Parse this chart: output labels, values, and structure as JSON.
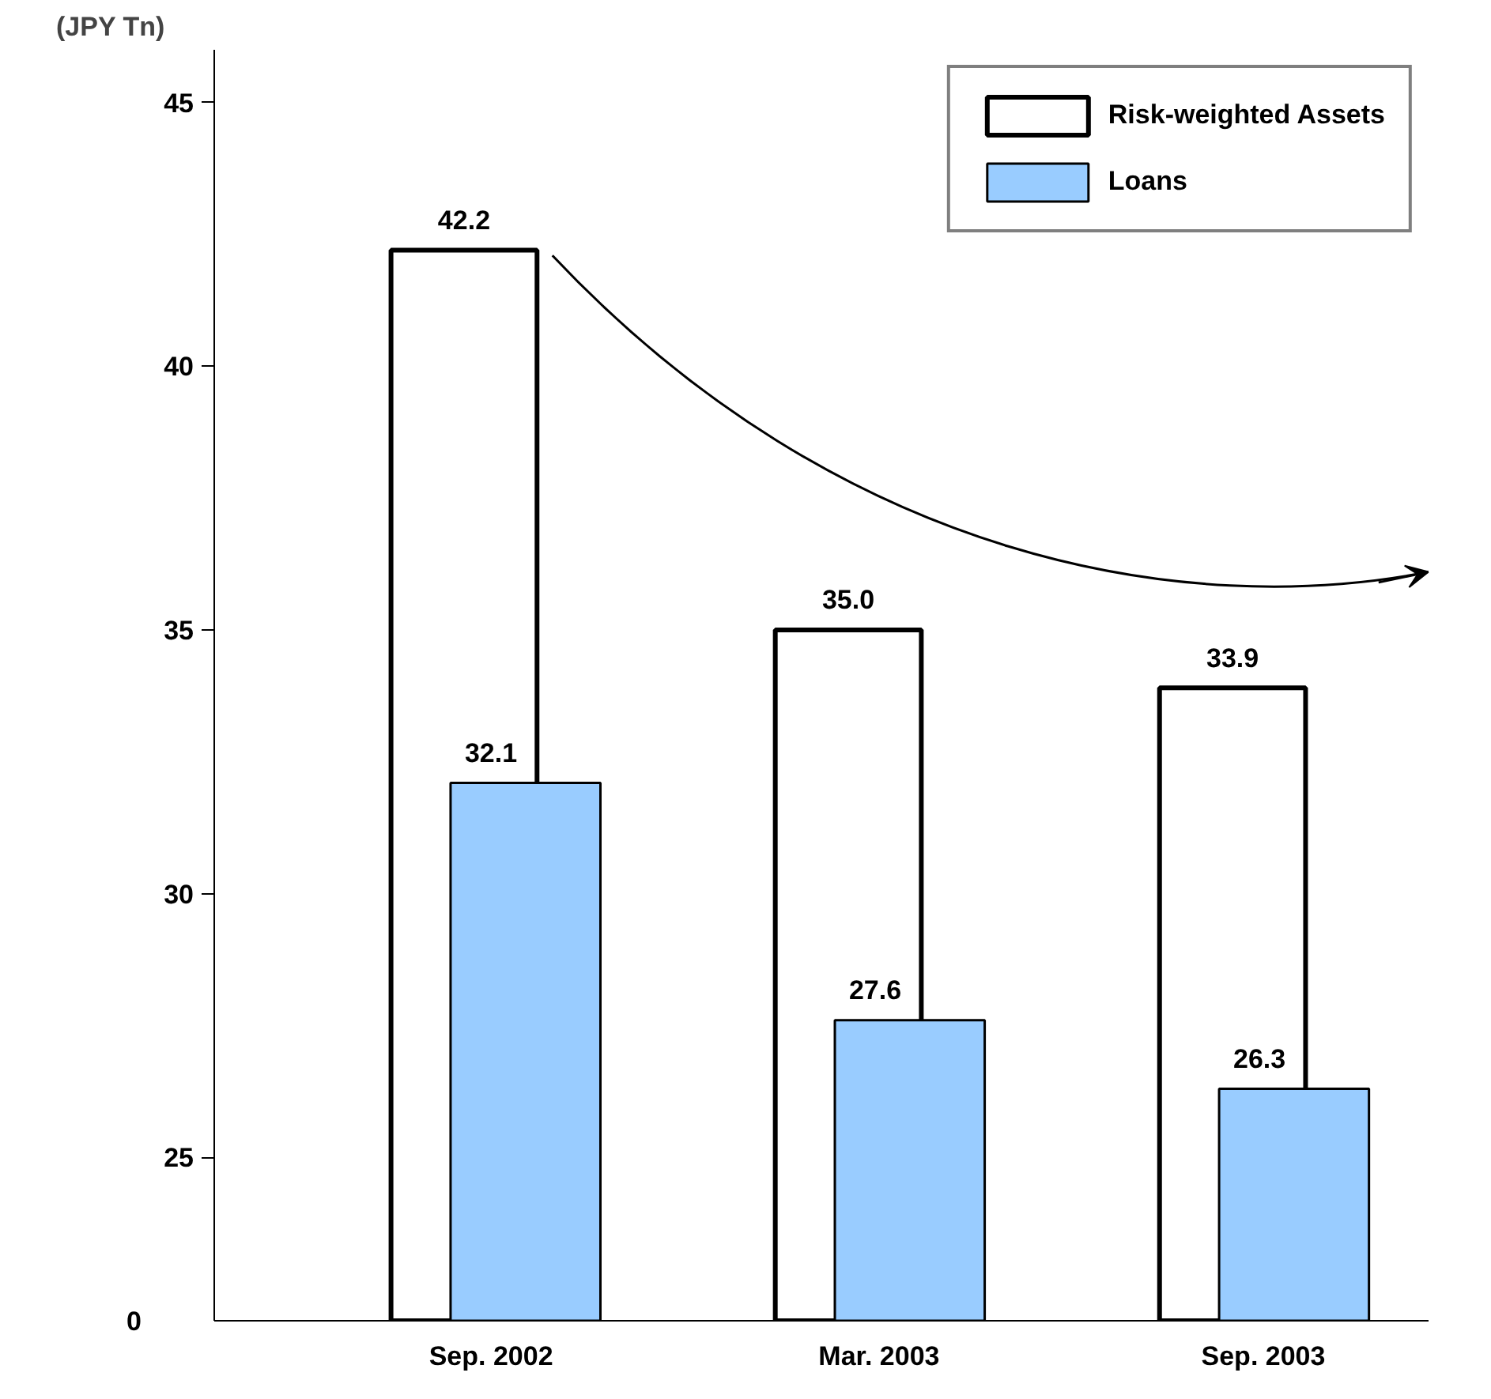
{
  "chart_data": {
    "type": "bar",
    "ylabel": "(JPY Tn)",
    "categories": [
      "Sep.  2002",
      "Mar. 2003",
      "Sep. 2003"
    ],
    "series": [
      {
        "name": "Risk-weighted Assets",
        "color": "#ffffff",
        "values": [
          42.2,
          35.0,
          33.9
        ],
        "value_labels": [
          "42.2",
          "35.0",
          "33.9"
        ]
      },
      {
        "name": "Loans",
        "color": "#99ccff",
        "values": [
          32.1,
          27.6,
          26.3
        ],
        "value_labels": [
          "32.1",
          "27.6",
          "26.3"
        ]
      }
    ],
    "ylim": [
      21.9,
      46
    ],
    "yticks": [
      25,
      30,
      35,
      40,
      45
    ],
    "annotations": [
      "0"
    ],
    "grid": false,
    "legend": "top right"
  }
}
